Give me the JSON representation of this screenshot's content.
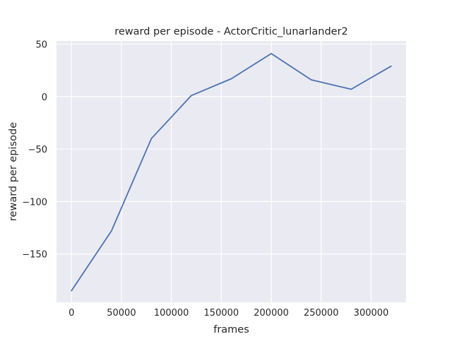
{
  "chart_data": {
    "type": "line",
    "title": "reward per episode - ActorCritic_lunarlander2",
    "xlabel": "frames",
    "ylabel": "reward per episode",
    "xlim": [
      -15000,
      335000
    ],
    "ylim": [
      -196,
      53
    ],
    "x_ticks": [
      0,
      50000,
      100000,
      150000,
      200000,
      250000,
      300000
    ],
    "x_tick_labels": [
      "0",
      "50000",
      "100000",
      "150000",
      "200000",
      "250000",
      "300000"
    ],
    "y_ticks": [
      50,
      0,
      -50,
      -100,
      -150
    ],
    "y_tick_labels": [
      "50",
      "0",
      "−50",
      "−100",
      "−150"
    ],
    "grid": true,
    "series": [
      {
        "color": "#4c72b0",
        "x": [
          0,
          40000,
          80000,
          120000,
          160000,
          200000,
          240000,
          280000,
          320000
        ],
        "y": [
          -185,
          -128,
          -40,
          1,
          17,
          41,
          16,
          7,
          29
        ]
      }
    ]
  }
}
